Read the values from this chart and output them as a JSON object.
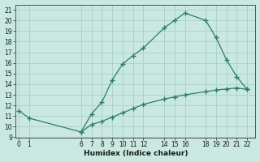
{
  "xlabel": "Humidex (Indice chaleur)",
  "x_upper_line": [
    0,
    1,
    6,
    7,
    8,
    9,
    10,
    11,
    12,
    14,
    15,
    16,
    18,
    19,
    20,
    21,
    22
  ],
  "y_upper_line": [
    11.5,
    10.8,
    9.5,
    11.2,
    12.3,
    14.4,
    15.9,
    16.7,
    17.4,
    19.3,
    20.0,
    20.7,
    20.0,
    18.4,
    16.3,
    14.7,
    13.5
  ],
  "x_lower_line": [
    6,
    7,
    8,
    9,
    10,
    11,
    12,
    14,
    15,
    16,
    18,
    19,
    20,
    21,
    22
  ],
  "y_lower_line": [
    9.5,
    10.2,
    10.5,
    10.9,
    11.3,
    11.7,
    12.1,
    12.6,
    12.8,
    13.0,
    13.3,
    13.45,
    13.55,
    13.65,
    13.5
  ],
  "line_color": "#2d7b6e",
  "bg_color": "#c8e8e0",
  "grid_color": "#aacfc8",
  "ylim": [
    9,
    21.5
  ],
  "yticks": [
    9,
    10,
    11,
    12,
    13,
    14,
    15,
    16,
    17,
    18,
    19,
    20,
    21
  ],
  "xticks": [
    0,
    1,
    6,
    7,
    8,
    9,
    10,
    11,
    12,
    14,
    15,
    16,
    18,
    19,
    20,
    21,
    22
  ],
  "xlim": [
    -0.3,
    22.8
  ]
}
